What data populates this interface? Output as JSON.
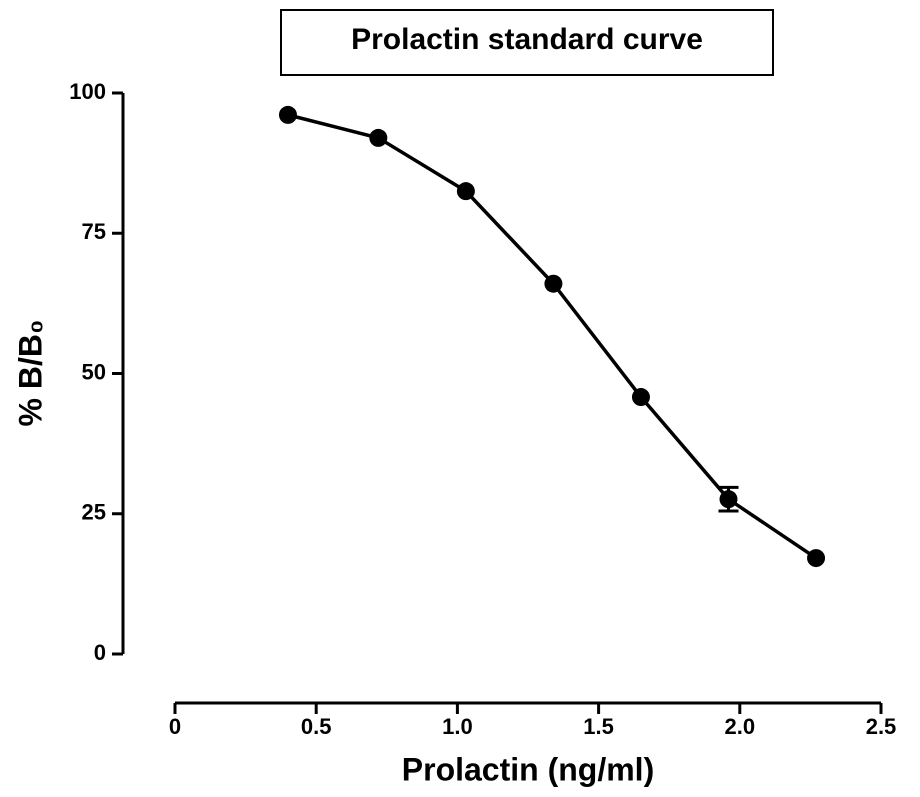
{
  "chart_data": {
    "type": "line",
    "title": "Prolactin standard curve",
    "xlabel": "Prolactin (ng/ml)",
    "ylabel": "% B/B₀",
    "x": [
      0.4,
      0.72,
      1.03,
      1.34,
      1.65,
      1.96,
      2.27
    ],
    "series": [
      {
        "values": [
          96.1,
          92.0,
          82.5,
          66.0,
          45.8,
          27.6,
          17.1
        ],
        "errors": [
          null,
          null,
          null,
          null,
          null,
          2.1,
          null
        ],
        "color": "#000000"
      }
    ],
    "xlim": [
      0,
      2.5
    ],
    "xticks": [
      0,
      {
        "value": 0.5,
        "label": "0.5"
      },
      {
        "value": 1.0,
        "label": "1.0"
      },
      {
        "value": 1.5,
        "label": "1.5"
      },
      {
        "value": 2.0,
        "label": "2.0"
      },
      {
        "value": 2.5,
        "label": "2.5"
      }
    ],
    "ylim": [
      0,
      100
    ],
    "yticks": [
      0,
      25,
      50,
      75,
      100
    ]
  }
}
